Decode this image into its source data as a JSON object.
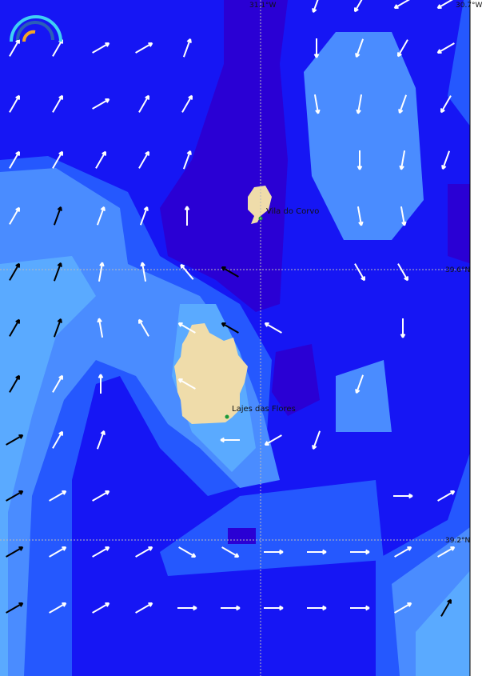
{
  "map": {
    "colors": {
      "level1": "#2a00d4",
      "level2": "#1616f4",
      "level3": "#2558fe",
      "level4": "#4a8cff",
      "level5": "#5aaaff",
      "land": "#efdcaa",
      "town": "#1a9a3a",
      "arrow_white": "#ffffff",
      "arrow_black": "#000000"
    },
    "grid_labels": {
      "lon_left": "31.1°W",
      "lon_right": "30.7°W",
      "lat_top": "39.6°N",
      "lat_bottom": "39.2°N"
    },
    "places": [
      {
        "name": "Vila do Corvo"
      },
      {
        "name": "Lajes das Flores"
      }
    ],
    "logo_icon": "rainbow-arc-logo",
    "arrow_field": [
      [
        null,
        null,
        null,
        null,
        null,
        null,
        null,
        200,
        210,
        240,
        240
      ],
      [
        30,
        30,
        60,
        60,
        20,
        null,
        null,
        180,
        200,
        210,
        240
      ],
      [
        30,
        30,
        60,
        30,
        30,
        null,
        null,
        170,
        190,
        200,
        210
      ],
      [
        30,
        30,
        30,
        30,
        20,
        null,
        null,
        null,
        180,
        190,
        200
      ],
      [
        30,
        "b20",
        20,
        20,
        0,
        null,
        null,
        null,
        170,
        170,
        null
      ],
      [
        "b30",
        "b20",
        10,
        350,
        320,
        "b300",
        null,
        null,
        150,
        150,
        null
      ],
      [
        "b30",
        "b20",
        350,
        330,
        300,
        "b300",
        300,
        null,
        null,
        180,
        null
      ],
      [
        "b30",
        30,
        0,
        null,
        300,
        null,
        null,
        null,
        200,
        null,
        null
      ],
      [
        "b60",
        30,
        20,
        null,
        null,
        270,
        240,
        200,
        null,
        null,
        null
      ],
      [
        "b60",
        60,
        60,
        null,
        null,
        null,
        null,
        null,
        null,
        90,
        60
      ],
      [
        "b60",
        60,
        60,
        60,
        120,
        120,
        90,
        90,
        90,
        60,
        60
      ],
      [
        "b60",
        60,
        60,
        60,
        90,
        90,
        90,
        90,
        90,
        60,
        "b30"
      ]
    ]
  }
}
